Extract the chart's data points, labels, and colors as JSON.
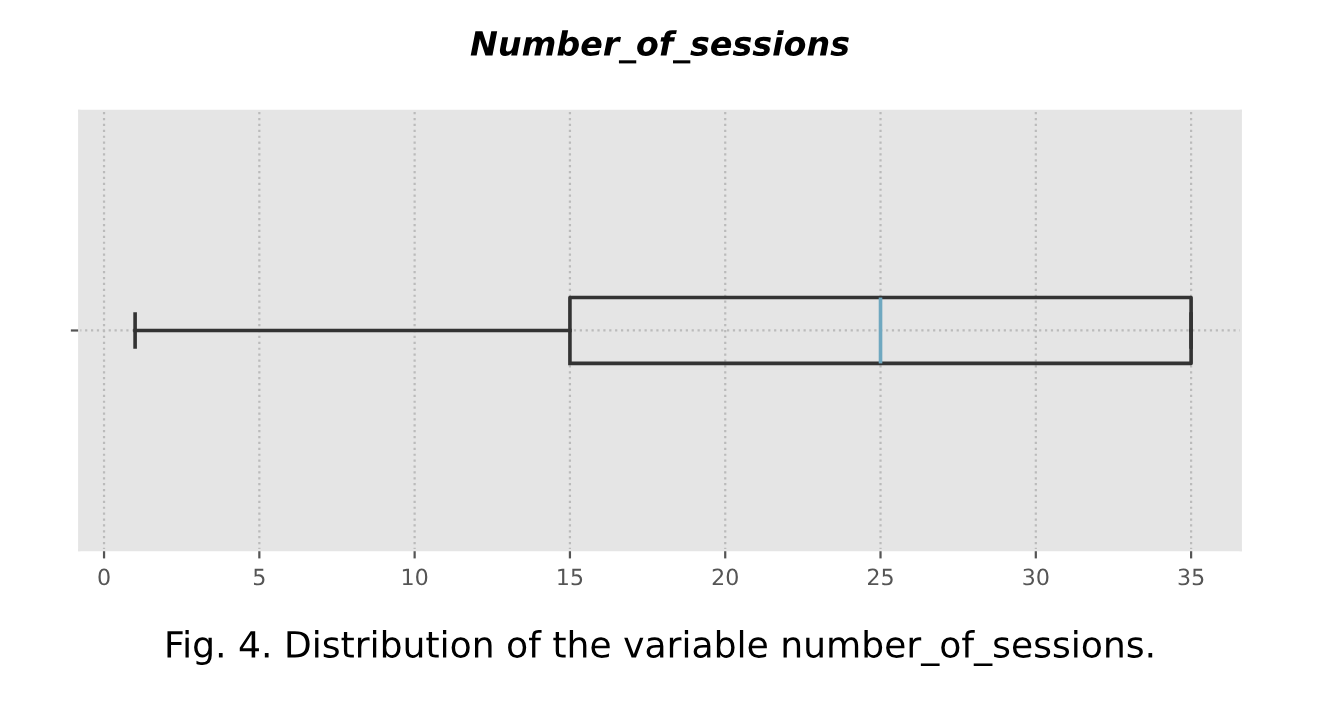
{
  "chart_data": {
    "type": "box",
    "title": "Number_of_sessions",
    "orientation": "horizontal",
    "categories": [
      null
    ],
    "boxes": [
      {
        "low": 1,
        "q1": 15,
        "median": 25,
        "q3": 35,
        "high": 35
      }
    ],
    "color": "#333333",
    "xlim": [
      -0.8,
      36.6
    ],
    "xticks": [
      0,
      5,
      10,
      15,
      20,
      25,
      30,
      35
    ],
    "grid": true,
    "annotations": [
      "Fig. 4. Distribution of the variable number_of_sessions."
    ]
  }
}
